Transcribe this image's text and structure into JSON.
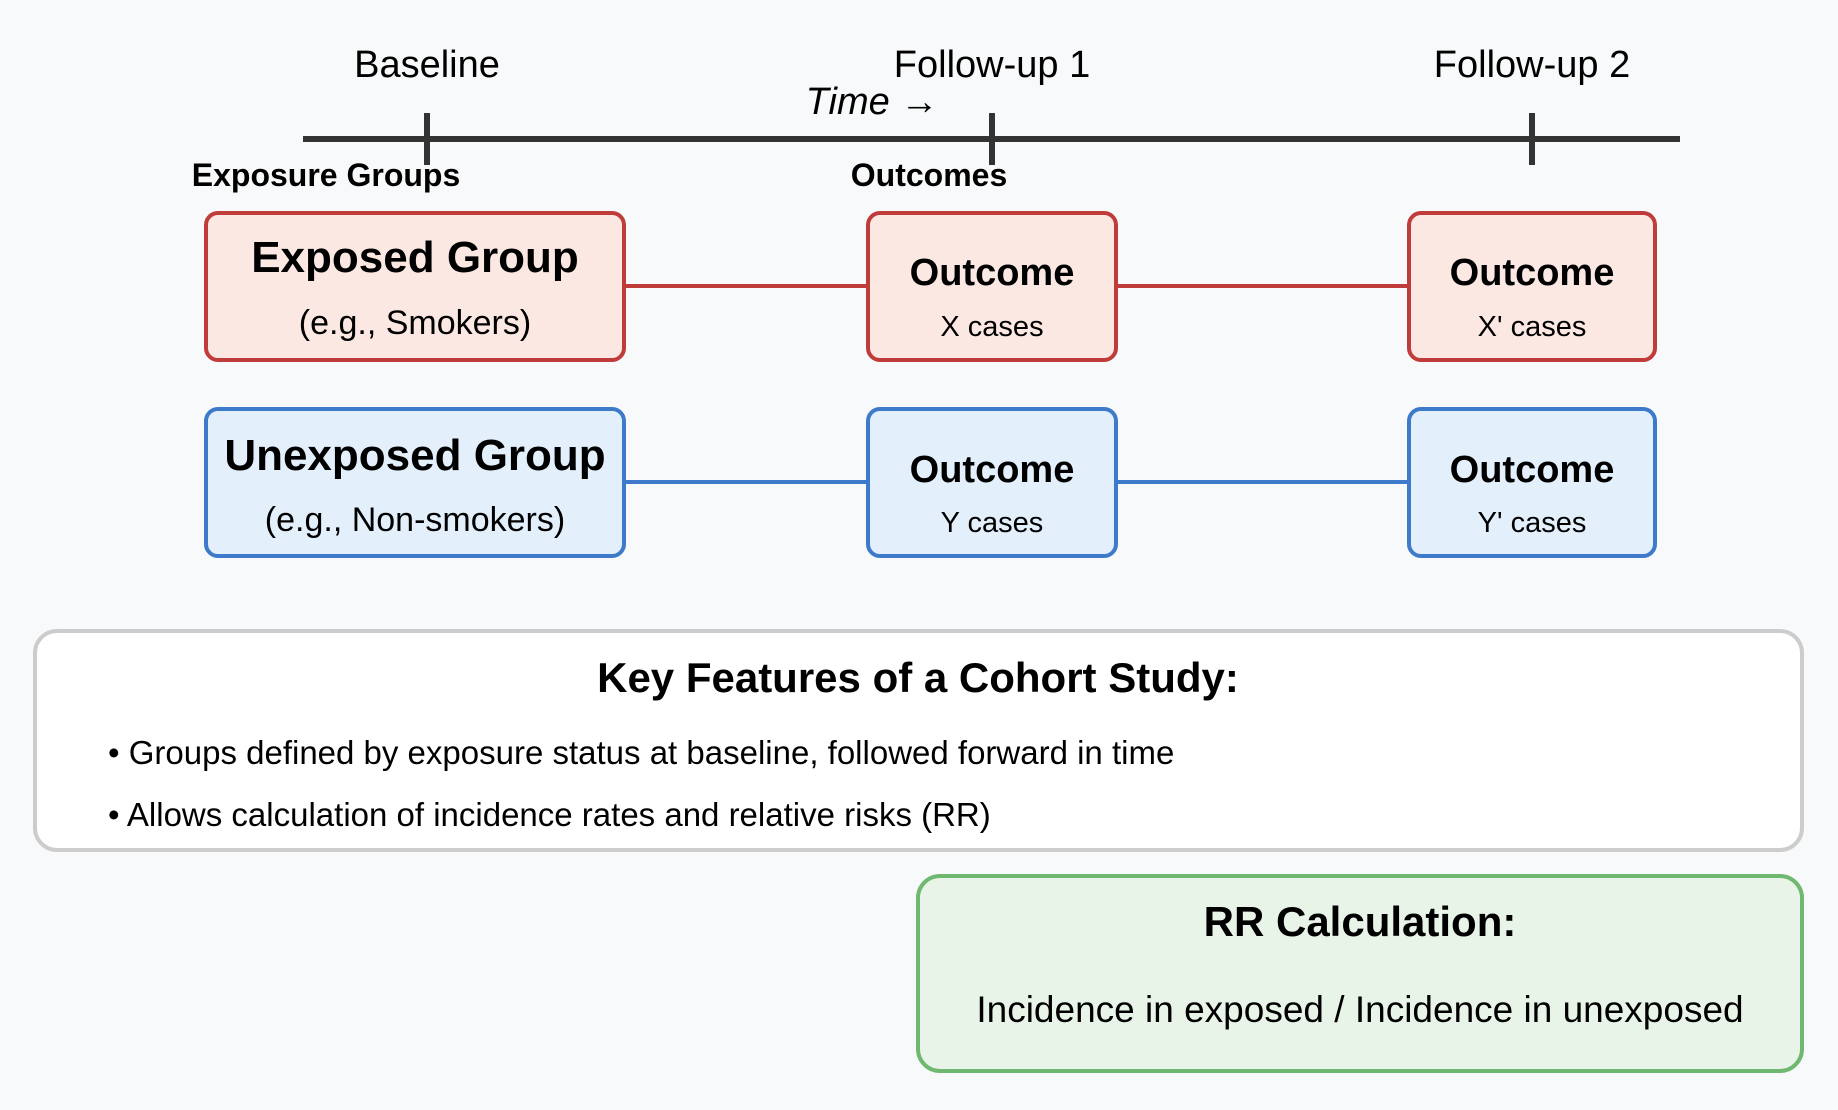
{
  "timeline": {
    "milestones": [
      "Baseline",
      "Follow-up 1",
      "Follow-up 2"
    ],
    "axis_label": "Time →",
    "column_headers": {
      "exposure": "Exposure Groups",
      "outcomes": "Outcomes"
    }
  },
  "groups": {
    "exposed": {
      "title": "Exposed Group",
      "example": "(e.g., Smokers)",
      "outcome1": {
        "title": "Outcome",
        "value": "X cases"
      },
      "outcome2": {
        "title": "Outcome",
        "value": "X' cases"
      }
    },
    "unexposed": {
      "title": "Unexposed Group",
      "example": "(e.g., Non-smokers)",
      "outcome1": {
        "title": "Outcome",
        "value": "Y cases"
      },
      "outcome2": {
        "title": "Outcome",
        "value": "Y' cases"
      }
    }
  },
  "key_features": {
    "title": "Key Features of a Cohort Study:",
    "items": [
      "• Groups defined by exposure status at baseline, followed forward in time",
      "• Allows calculation of incidence rates and relative risks (RR)"
    ]
  },
  "rr_box": {
    "title": "RR Calculation:",
    "formula": "Incidence in exposed / Incidence in unexposed"
  },
  "colors": {
    "exposed_fill": "#fce8e3",
    "exposed_stroke": "#c03c3a",
    "unexposed_fill": "#e3f0fc",
    "unexposed_stroke": "#3d7ac9",
    "timeline": "#333333",
    "features_stroke": "#cccccc",
    "rr_fill": "#e9f4e9",
    "rr_stroke": "#6fb86f"
  }
}
